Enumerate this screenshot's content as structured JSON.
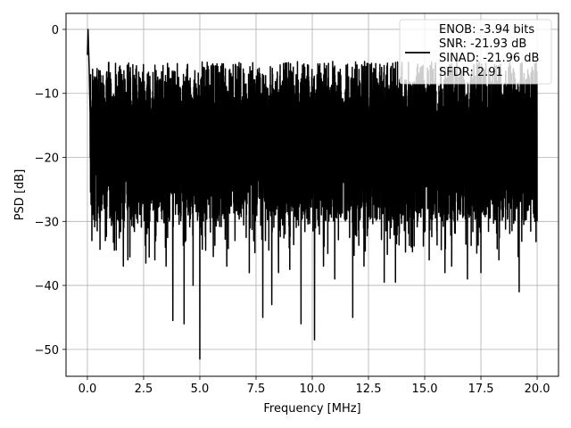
{
  "chart_data": {
    "type": "line",
    "title": "",
    "xlabel": "Frequency [MHz]",
    "ylabel": "PSD [dB]",
    "xlim": [
      -0.95,
      20.95
    ],
    "ylim": [
      -54.2,
      2.5
    ],
    "xticks": [
      0.0,
      2.5,
      5.0,
      7.5,
      10.0,
      12.5,
      15.0,
      17.5,
      20.0
    ],
    "xtick_labels": [
      "0.0",
      "2.5",
      "5.0",
      "7.5",
      "10.0",
      "12.5",
      "15.0",
      "17.5",
      "20.0"
    ],
    "yticks": [
      0,
      -10,
      -20,
      -30,
      -40,
      -50
    ],
    "ytick_labels": [
      "0",
      "−10",
      "−20",
      "−30",
      "−40",
      "−50"
    ],
    "grid": true,
    "legend_position": "top-right",
    "series": [
      {
        "name": "ENOB: -3.94 bits\nSNR: -21.93 dB\nSINAD: -21.96 dB\nSFDR: 2.91",
        "color": "#000000",
        "x_range": [
          0.0,
          20.0
        ],
        "noise_band_db": [
          -10,
          -28
        ],
        "x": [
          0.0,
          0.03,
          0.08,
          0.12,
          0.2,
          0.8,
          1.2,
          1.6,
          1.8,
          2.3,
          2.6,
          3.0,
          3.5,
          3.8,
          4.3,
          4.7,
          5.0,
          5.6,
          6.2,
          7.2,
          7.8,
          8.2,
          8.5,
          9.0,
          9.5,
          10.1,
          10.5,
          11.0,
          11.8,
          12.3,
          13.2,
          13.7,
          14.4,
          15.2,
          15.9,
          16.2,
          16.9,
          17.5,
          18.3,
          19.2,
          19.9,
          20.0
        ],
        "y": [
          -4.0,
          0.0,
          -6.0,
          -13.0,
          -33.0,
          -33.0,
          -34.5,
          -37.0,
          -36.0,
          -32.0,
          -36.5,
          -36.0,
          -37.0,
          -45.5,
          -46.0,
          -40.0,
          -51.5,
          -35.5,
          -37.0,
          -38.0,
          -45.0,
          -43.0,
          -38.0,
          -37.5,
          -46.0,
          -48.5,
          -37.0,
          -39.0,
          -45.0,
          -37.0,
          -39.5,
          -39.5,
          -34.0,
          -36.0,
          -38.0,
          -37.0,
          -39.0,
          -38.0,
          -36.0,
          -41.0,
          -30.0,
          -30.0
        ],
        "peaks_x": [
          2.3,
          3.3,
          5.5,
          5.8,
          6.6,
          7.3,
          11.2,
          12.7,
          14.9,
          16.4,
          17.6,
          19.3
        ],
        "peaks_y": [
          -7.8,
          -6.6,
          -5.7,
          -5.8,
          -5.6,
          -6.5,
          -6.8,
          -6.8,
          -6.4,
          -7.0,
          -6.8,
          -6.1
        ]
      }
    ]
  }
}
